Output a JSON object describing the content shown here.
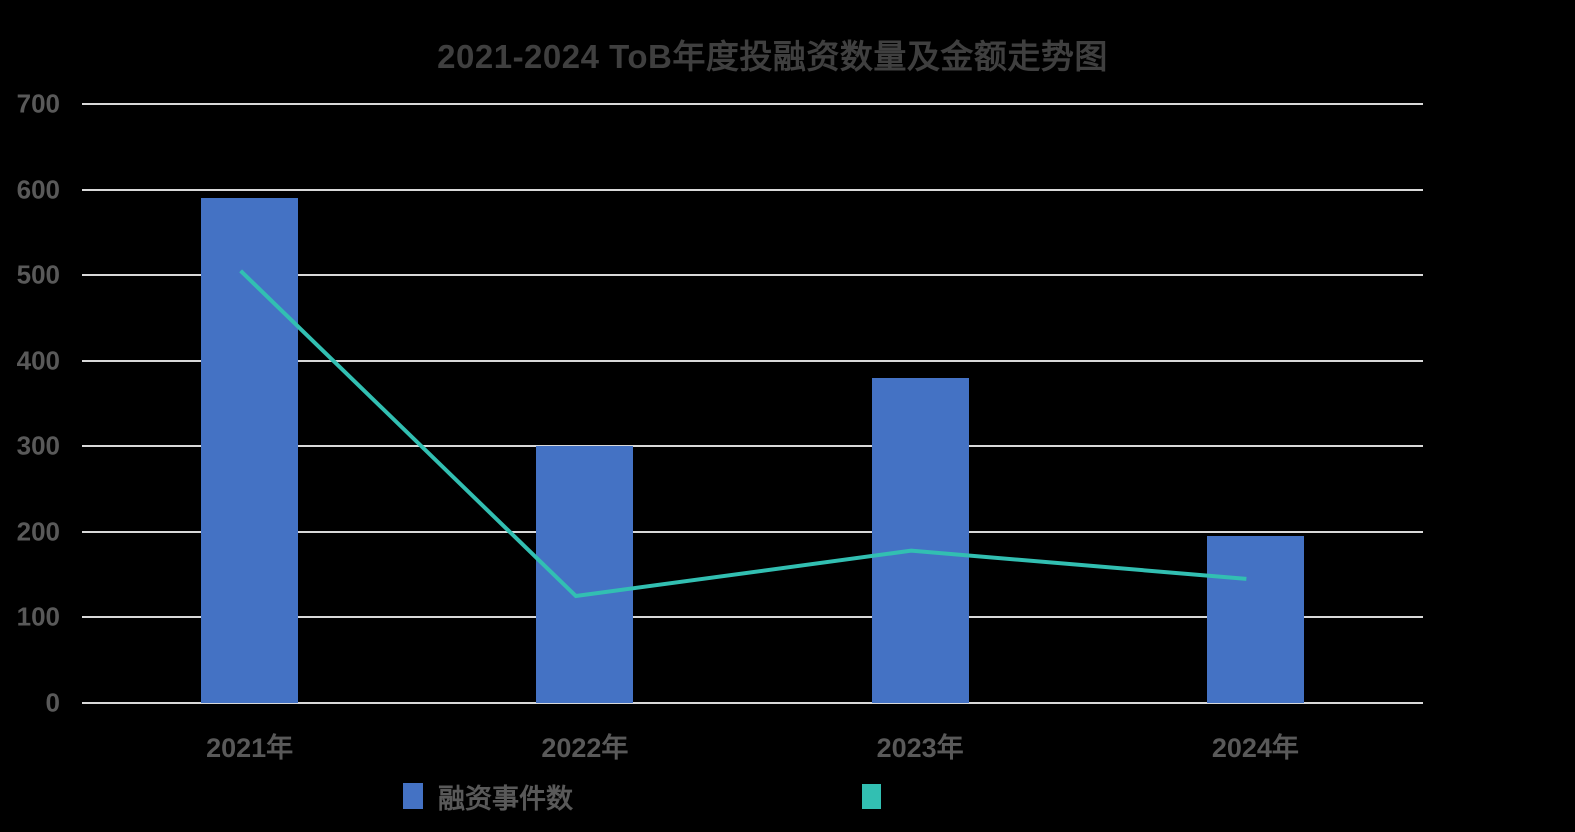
{
  "page": {
    "background": "#000000"
  },
  "colors": {
    "bar_series": "#4472C4",
    "line_series": "#32BFB2",
    "title_text": "#3F3F3F",
    "axis_text": "#595959",
    "gridline": "#D9D9D9"
  },
  "chart_data": {
    "type": "bar",
    "title": "2021-2024 ToB年度投融资数量及金额走势图",
    "categories": [
      "2021年",
      "2022年",
      "2023年",
      "2024年"
    ],
    "series": [
      {
        "name": "融资事件数",
        "type": "bar",
        "color": "#4472C4",
        "values": [
          590,
          300,
          380,
          195
        ]
      },
      {
        "name": "",
        "type": "line",
        "color": "#32BFB2",
        "values": [
          505,
          125,
          178,
          145
        ]
      }
    ],
    "xlabel": "",
    "ylabel": "",
    "ylim": [
      0,
      700
    ],
    "ytick_step": 100,
    "yticks": [
      0,
      100,
      200,
      300,
      400,
      500,
      600,
      700
    ],
    "grid": true,
    "legend_position": "bottom"
  }
}
